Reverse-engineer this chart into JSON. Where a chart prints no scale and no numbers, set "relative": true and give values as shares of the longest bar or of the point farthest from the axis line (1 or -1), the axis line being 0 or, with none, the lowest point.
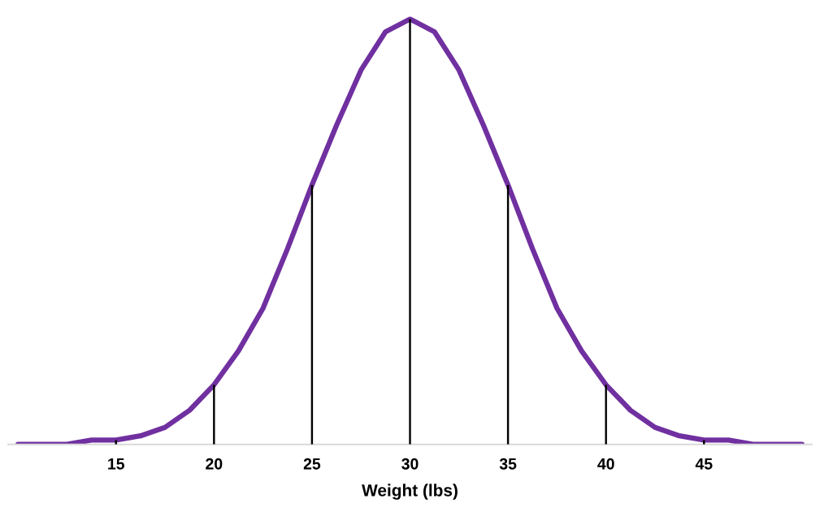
{
  "chart_data": {
    "type": "line",
    "relative": true,
    "xlabel": "Weight (lbs)",
    "xlim": [
      9.5,
      50.5
    ],
    "xticks": [
      15,
      20,
      25,
      30,
      35,
      40,
      45
    ],
    "grid": false,
    "legend": false,
    "marker": "none",
    "line_style": "solid",
    "series": [
      {
        "color": "#7030a0",
        "x": [
          10,
          11.25,
          12.5,
          13.75,
          15,
          16.25,
          17.5,
          18.75,
          20,
          21.25,
          22.5,
          23.75,
          25,
          26.25,
          27.5,
          28.75,
          30,
          31.25,
          32.5,
          33.75,
          35,
          36.25,
          37.5,
          38.75,
          40,
          41.25,
          42.5,
          43.75,
          45,
          46.25,
          47.5,
          48.75,
          50
        ],
        "values": [
          0,
          0,
          0,
          0.01,
          0.01,
          0.02,
          0.04,
          0.08,
          0.14,
          0.22,
          0.32,
          0.46,
          0.61,
          0.75,
          0.88,
          0.97,
          1,
          0.97,
          0.88,
          0.75,
          0.61,
          0.46,
          0.32,
          0.22,
          0.14,
          0.08,
          0.04,
          0.02,
          0.01,
          0.01,
          0,
          0,
          0
        ]
      },
      {
        "type": "bar",
        "color": "#000000",
        "x": [
          15,
          20,
          25,
          30,
          35,
          40,
          45
        ],
        "values": [
          0.01,
          0.14,
          0.61,
          1,
          0.61,
          0.14,
          0.01
        ]
      }
    ]
  }
}
